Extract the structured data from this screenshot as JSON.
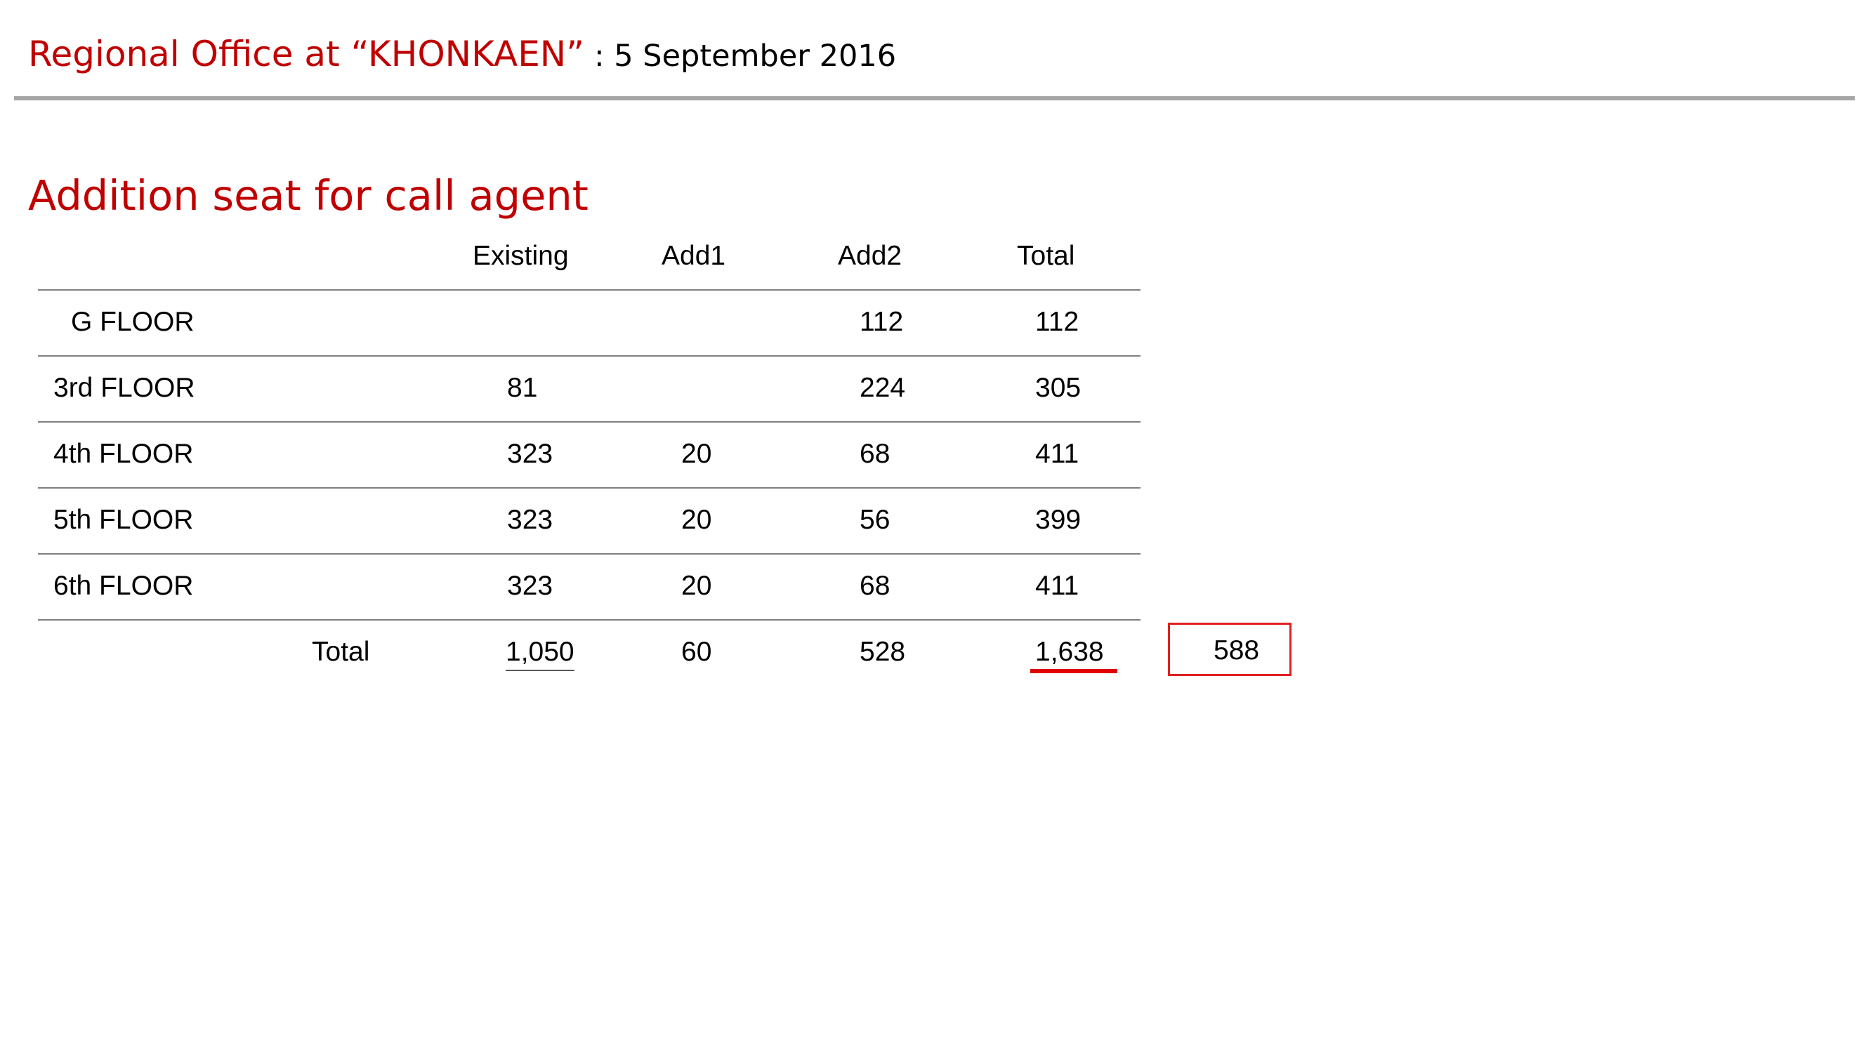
{
  "header": {
    "title": "Regional Office at “KHONKAEN”",
    "date": ": 5 September 2016"
  },
  "section_title": "Addition seat for call agent",
  "table": {
    "columns": [
      "Existing",
      "Add1",
      "Add2",
      "Total"
    ],
    "rows": [
      {
        "label": "G FLOOR",
        "existing": "",
        "add1": "",
        "add2": "112",
        "total": "112"
      },
      {
        "label": "3rd FLOOR",
        "existing": "81",
        "add1": "",
        "add2": "224",
        "total": "305"
      },
      {
        "label": "4th FLOOR",
        "existing": "323",
        "add1": "20",
        "add2": "68",
        "total": "411"
      },
      {
        "label": "5th FLOOR",
        "existing": "323",
        "add1": "20",
        "add2": "56",
        "total": "399"
      },
      {
        "label": "6th FLOOR",
        "existing": "323",
        "add1": "20",
        "add2": "68",
        "total": "411"
      }
    ],
    "total_row": {
      "label": "Total",
      "existing": "1,050",
      "add1": "60",
      "add2": "528",
      "total": "1,638"
    }
  },
  "difference_box": "588",
  "colors": {
    "accent_red": "#c00000",
    "rule_gray": "#a6a6a6",
    "highlight_red": "#e00000"
  }
}
